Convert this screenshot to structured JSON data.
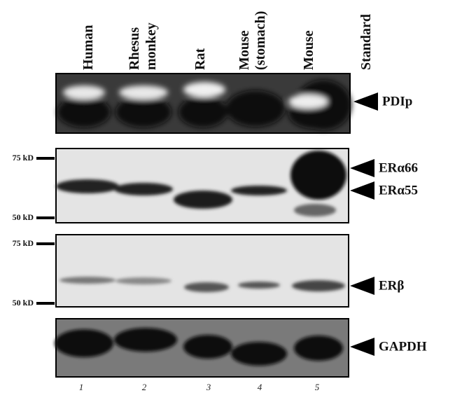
{
  "lanes": [
    {
      "label": [
        "Human"
      ],
      "number": "1"
    },
    {
      "label": [
        "Rhesus",
        "monkey"
      ],
      "number": "2"
    },
    {
      "label": [
        "Rat"
      ],
      "number": "3"
    },
    {
      "label": [
        "Mouse",
        "(stomach)"
      ],
      "number": "4"
    },
    {
      "label": [
        "Mouse"
      ],
      "number": "5"
    },
    {
      "label": [
        "Standard"
      ]
    }
  ],
  "blots": [
    {
      "targets": [
        "PDIp"
      ]
    },
    {
      "targets": [
        "ERα66",
        "ERα55"
      ],
      "markers": [
        "75 kD",
        "50 kD"
      ]
    },
    {
      "targets": [
        "ERβ"
      ],
      "markers": [
        "75 kD",
        "50 kD"
      ]
    },
    {
      "targets": [
        "GAPDH"
      ]
    }
  ]
}
